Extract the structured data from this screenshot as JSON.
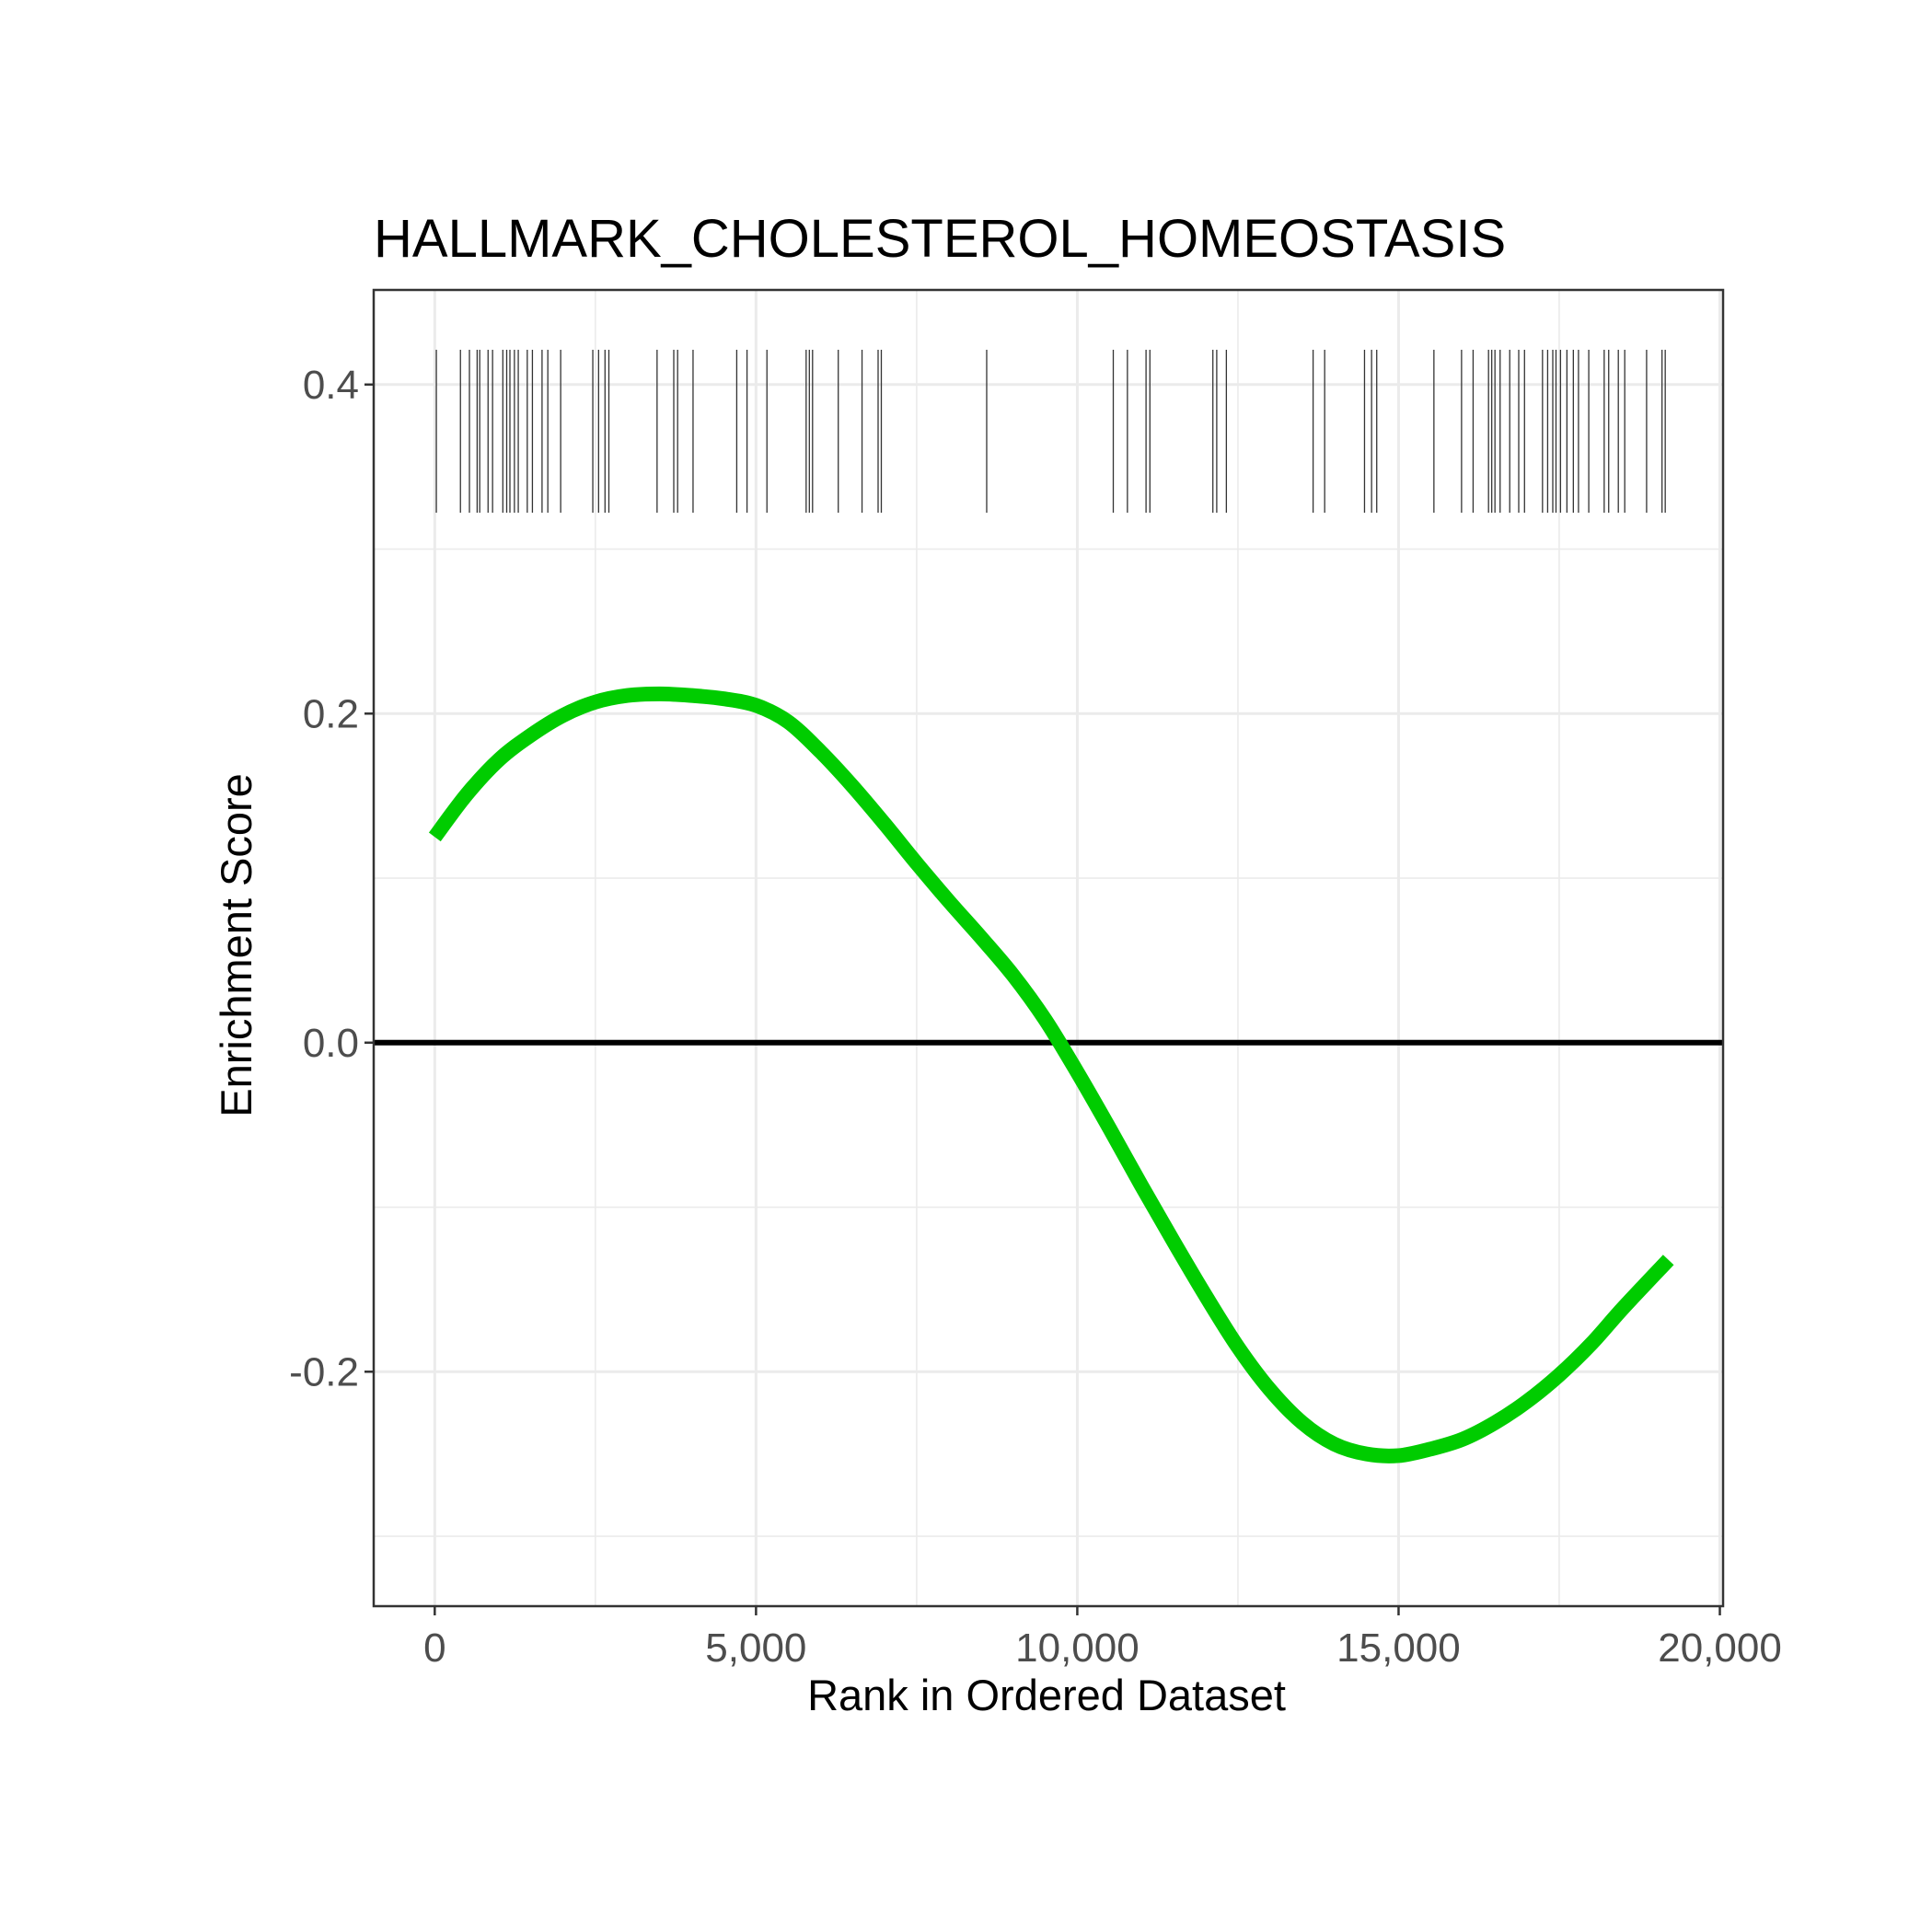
{
  "chart_data": {
    "type": "line",
    "title": "HALLMARK_CHOLESTEROL_HOMEOSTASIS",
    "xlabel": "Rank in Ordered Dataset",
    "ylabel": "Enrichment Score",
    "xlim": [
      -950,
      20050
    ],
    "ylim": [
      -0.3425,
      0.4575
    ],
    "x_ticks": [
      0,
      5000,
      10000,
      15000,
      20000
    ],
    "x_tick_labels": [
      "0",
      "5,000",
      "10,000",
      "15,000",
      "20,000"
    ],
    "y_ticks": [
      -0.2,
      0.0,
      0.2,
      0.4
    ],
    "y_tick_labels": [
      "-0.2",
      "0.0",
      "0.2",
      "0.4"
    ],
    "grid": true,
    "colors": {
      "curve": "#00cc00",
      "zero_line": "#000000",
      "hit_ticks": "#333333"
    },
    "series": [
      {
        "x": [
          0,
          500,
          1000,
          1500,
          2000,
          2500,
          3000,
          3500,
          4000,
          4500,
          5000,
          5500,
          6000,
          6500,
          7000,
          7500,
          8000,
          8500,
          9000,
          9500,
          10000,
          10500,
          11000,
          11500,
          12000,
          12500,
          13000,
          13500,
          14000,
          14500,
          15000,
          15500,
          16000,
          16500,
          17000,
          17500,
          18000,
          18500,
          19200
        ],
        "values": [
          0.125,
          0.151,
          0.172,
          0.187,
          0.199,
          0.207,
          0.211,
          0.212,
          0.211,
          0.209,
          0.205,
          0.195,
          0.177,
          0.156,
          0.133,
          0.109,
          0.086,
          0.064,
          0.041,
          0.014,
          -0.018,
          -0.052,
          -0.087,
          -0.121,
          -0.154,
          -0.185,
          -0.211,
          -0.231,
          -0.244,
          -0.25,
          -0.251,
          -0.247,
          -0.241,
          -0.231,
          -0.218,
          -0.202,
          -0.183,
          -0.161,
          -0.132
        ]
      }
    ],
    "hit_ranks": [
      25,
      400,
      540,
      660,
      700,
      830,
      900,
      1060,
      1120,
      1170,
      1240,
      1300,
      1440,
      1520,
      1670,
      1760,
      1960,
      2460,
      2550,
      2650,
      2710,
      3460,
      3720,
      3780,
      4020,
      4700,
      4860,
      5170,
      5780,
      5830,
      5880,
      6280,
      6650,
      6900,
      6950,
      8590,
      10560,
      10780,
      11070,
      11130,
      12110,
      12170,
      12320,
      13670,
      13850,
      14470,
      14580,
      14660,
      15550,
      15980,
      16160,
      16400,
      16450,
      16500,
      16580,
      16730,
      16870,
      16960,
      17240,
      17320,
      17400,
      17450,
      17520,
      17620,
      17720,
      17800,
      17960,
      18200,
      18270,
      18420,
      18520,
      18860,
      19100,
      19150
    ]
  }
}
